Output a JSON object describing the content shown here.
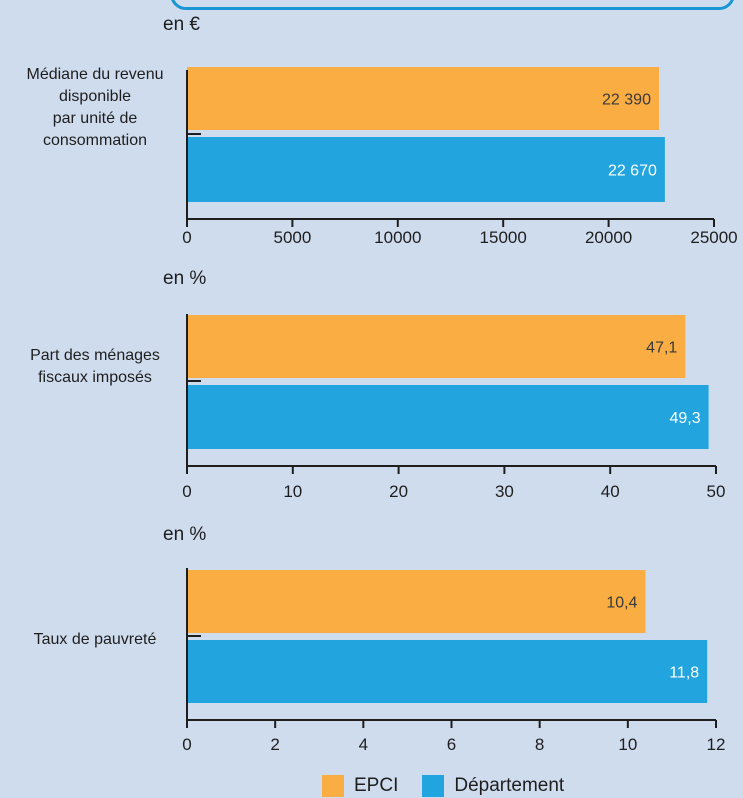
{
  "colors": {
    "epci": "#f9ad42",
    "departement": "#22a5de",
    "axis": "#1e1e1e",
    "label_dark": "#3a3a3a",
    "label_light": "#ffffff"
  },
  "legend": [
    {
      "label": "EPCI",
      "color": "#f9ad42"
    },
    {
      "label": "Département",
      "color": "#22a5de"
    }
  ],
  "chart_data": [
    {
      "type": "bar",
      "orientation": "horizontal",
      "unit_label": "en €",
      "category": "Médiane du revenu\ndisponible\npar unité de\nconsommation",
      "series": [
        {
          "name": "EPCI",
          "value": 22390,
          "label": "22 390"
        },
        {
          "name": "Département",
          "value": 22670,
          "label": "22 670"
        }
      ],
      "xlim": [
        0,
        25000
      ],
      "ticks": [
        "0",
        "5000",
        "10000",
        "15000",
        "20000",
        "25000"
      ]
    },
    {
      "type": "bar",
      "orientation": "horizontal",
      "unit_label": "en %",
      "category": "Part des ménages\nfiscaux imposés",
      "series": [
        {
          "name": "EPCI",
          "value": 47.1,
          "label": "47,1"
        },
        {
          "name": "Département",
          "value": 49.3,
          "label": "49,3"
        }
      ],
      "xlim": [
        0,
        50
      ],
      "ticks": [
        "0",
        "10",
        "20",
        "30",
        "40",
        "50"
      ]
    },
    {
      "type": "bar",
      "orientation": "horizontal",
      "unit_label": "en %",
      "category": "Taux de pauvreté",
      "series": [
        {
          "name": "EPCI",
          "value": 10.4,
          "label": "10,4"
        },
        {
          "name": "Département",
          "value": 11.8,
          "label": "11,8"
        }
      ],
      "xlim": [
        0,
        12
      ],
      "ticks": [
        "0",
        "2",
        "4",
        "6",
        "8",
        "10",
        "12"
      ]
    }
  ]
}
